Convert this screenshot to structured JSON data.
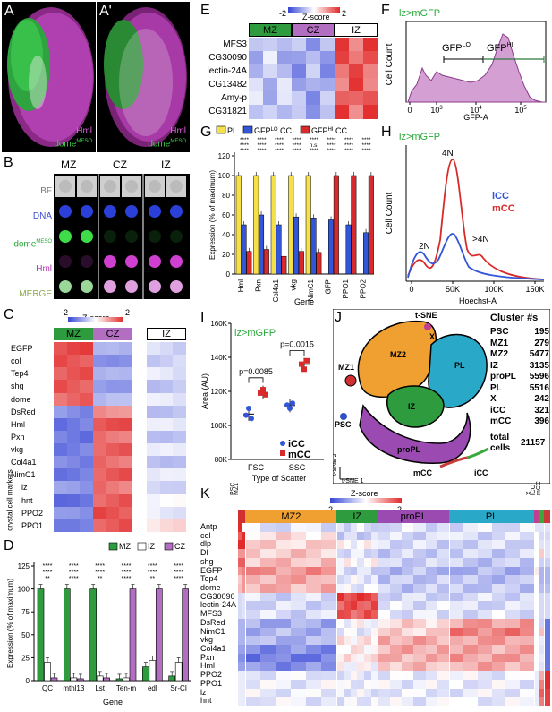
{
  "panels": {
    "A": {
      "label": "A",
      "hml": "Hml",
      "dome": "dome",
      "dome_sup": "MESO"
    },
    "A2": {
      "label": "A'",
      "hml": "Hml",
      "dome": "dome",
      "dome_sup": "MESO"
    },
    "B": {
      "label": "B",
      "cols": [
        "MZ",
        "CZ",
        "IZ"
      ],
      "rows": [
        "BF",
        "DNA",
        "dome",
        "Hml",
        "MERGE"
      ],
      "dome_sup": "MESO"
    },
    "C": {
      "label": "C",
      "zscore": "Z-score",
      "zmin": "-2",
      "zmax": "2",
      "cols": [
        "MZ",
        "CZ",
        "IZ"
      ],
      "genes": [
        "EGFP",
        "col",
        "Tep4",
        "shg",
        "dome",
        "DsRed",
        "Hml",
        "Pxn",
        "vkg",
        "Col4a1",
        "NimC1",
        "lz",
        "hnt",
        "PPO2",
        "PPO1"
      ],
      "crystal_label": "crystal cell markers"
    },
    "D": {
      "label": "D",
      "legend": [
        "MZ",
        "IZ",
        "CZ"
      ],
      "ylabel": "Expression (% of maximum)",
      "xlabel": "Gene",
      "genes": [
        "QC",
        "mthl13",
        "Lst",
        "Ten-m",
        "edl",
        "Sr-CI"
      ],
      "yticks": [
        "0",
        "25",
        "50",
        "75",
        "100",
        "125"
      ],
      "sig_top": "****",
      "sig_mid": "**"
    },
    "E": {
      "label": "E",
      "zscore": "Z-score",
      "zmin": "-2",
      "zmax": "2",
      "cols": [
        "MZ",
        "CZ",
        "IZ"
      ],
      "genes": [
        "MFS3",
        "CG30090",
        "lectin-24A",
        "CG13482",
        "Amy-p",
        "CG31821"
      ]
    },
    "F": {
      "label": "F",
      "title": "lz>mGFP",
      "ylabel": "Cell Count",
      "xlabel": "GFP-A",
      "lo": "GFP",
      "lo_sup": "LO",
      "hi": "GFP",
      "hi_sup": "HI",
      "xticks": [
        "0",
        "10",
        "10",
        "10"
      ],
      "xtick_sup": [
        "",
        "3",
        "4",
        "5"
      ]
    },
    "G": {
      "label": "G",
      "legend": [
        "PL",
        "GFP",
        "CC",
        "GFP",
        "CC"
      ],
      "legend_sup": [
        "LO",
        "HI"
      ],
      "ylabel": "Expression (% of maximum)",
      "xlabel": "Gene",
      "genes": [
        "Hml",
        "Pxn",
        "Col4a1",
        "vkg",
        "NimC1",
        "GFP",
        "PPO1",
        "PPO2"
      ],
      "yticks": [
        "0",
        "20",
        "40",
        "60",
        "80",
        "100",
        "120"
      ],
      "sig": "****",
      "ns": "n.s."
    },
    "H": {
      "label": "H",
      "title": "lz>mGFP",
      "ylabel": "Cell Count",
      "xlabel": "Hoechst-A",
      "icc": "iCC",
      "mcc": "mCC",
      "n2": "2N",
      "n4": "4N",
      "ngt4": ">4N",
      "xticks": [
        "0",
        "50K",
        "100K",
        "150K"
      ]
    },
    "I": {
      "label": "I",
      "title": "lz>mGFP",
      "ylabel": "Area (AU)",
      "xlabel": "Type of Scatter",
      "groups": [
        "FSC",
        "SSC"
      ],
      "p1": "p=0.0085",
      "p2": "p=0.0015",
      "yticks": [
        "80K",
        "100K",
        "120K",
        "140K",
        "160K"
      ],
      "icc": "iCC",
      "mcc": "mCC"
    },
    "J": {
      "label": "J",
      "tsne": "t-SNE",
      "tsne1": "t-SNE 1",
      "tsne2": "t-SNE 2",
      "cluster_title": "Cluster #s",
      "clusters": [
        {
          "name": "PSC",
          "count": "195"
        },
        {
          "name": "MZ1",
          "count": "279"
        },
        {
          "name": "MZ2",
          "count": "5477"
        },
        {
          "name": "IZ",
          "count": "3135"
        },
        {
          "name": "proPL",
          "count": "5596"
        },
        {
          "name": "PL",
          "count": "5516"
        },
        {
          "name": "X",
          "count": "242"
        },
        {
          "name": "iCC",
          "count": "321"
        },
        {
          "name": "mCC",
          "count": "396"
        }
      ],
      "total_label": "total",
      "total_label2": "cells",
      "total": "21157",
      "map_labels": [
        "MZ1",
        "MZ2",
        "PL",
        "IZ",
        "proPL",
        "PSC",
        "X",
        "mCC",
        "iCC",
        "t-SNE"
      ]
    },
    "K": {
      "label": "K",
      "zscore": "Z-score",
      "zmin": "-2",
      "zmax": "2",
      "clusters": [
        "PSC",
        "MZ1",
        "MZ2",
        "IZ",
        "proPL",
        "PL",
        "X",
        "iCC",
        "mCC"
      ],
      "genes": [
        "Antp",
        "col",
        "dlp",
        "Dl",
        "shg",
        "EGFP",
        "Tep4",
        "dome",
        "CG30090",
        "lectin-24A",
        "MFS3",
        "DsRed",
        "NimC1",
        "vkg",
        "Col4a1",
        "Pxn",
        "Hml",
        "PPO2",
        "PPO1",
        "lz",
        "hnt"
      ]
    }
  },
  "colors": {
    "mz": "#2e9b3e",
    "cz": "#b26ec0",
    "iz": "#ffffff",
    "pl": "#f5e04a",
    "lo": "#3355d8",
    "hi": "#d82a2a",
    "mz2": "#f0a030",
    "plc": "#2aa8c8",
    "propl": "#9a4ab0",
    "izc": "#2e9b3e"
  },
  "chart_data": [
    {
      "type": "bar",
      "title": "",
      "xlabel": "Gene",
      "ylabel": "Expression (% of maximum)",
      "ylim": [
        0,
        125
      ],
      "categories": [
        "QC",
        "mthl13",
        "Lst",
        "Ten-m",
        "edl",
        "Sr-CI"
      ],
      "series": [
        {
          "name": "MZ",
          "values": [
            100,
            100,
            100,
            2,
            15,
            5
          ]
        },
        {
          "name": "IZ",
          "values": [
            20,
            3,
            5,
            3,
            22,
            20
          ]
        },
        {
          "name": "CZ",
          "values": [
            3,
            2,
            3,
            100,
            100,
            100
          ]
        }
      ]
    },
    {
      "type": "bar",
      "title": "",
      "xlabel": "Gene",
      "ylabel": "Expression (% of maximum)",
      "ylim": [
        0,
        120
      ],
      "categories": [
        "Hml",
        "Pxn",
        "Col4a1",
        "vkg",
        "NimC1",
        "GFP",
        "PPO1",
        "PPO2"
      ],
      "series": [
        {
          "name": "PL",
          "values": [
            100,
            100,
            100,
            100,
            100,
            0,
            0,
            0
          ]
        },
        {
          "name": "GFP LO CC",
          "values": [
            50,
            60,
            50,
            58,
            57,
            55,
            50,
            42
          ]
        },
        {
          "name": "GFP HI CC",
          "values": [
            23,
            25,
            18,
            23,
            22,
            100,
            100,
            100
          ]
        }
      ]
    },
    {
      "type": "scatter",
      "title": "lz>mGFP",
      "xlabel": "Type of Scatter",
      "ylabel": "Area (AU)",
      "ylim": [
        80000,
        160000
      ],
      "categories": [
        "FSC",
        "SSC"
      ],
      "series": [
        {
          "name": "iCC",
          "values": [
            [
              106000,
              110000,
              104000
            ],
            [
              112000,
              110000,
              113000
            ]
          ]
        },
        {
          "name": "mCC",
          "values": [
            [
              119000,
              121000,
              118000
            ],
            [
              136000,
              133000,
              138000
            ]
          ]
        }
      ]
    }
  ]
}
